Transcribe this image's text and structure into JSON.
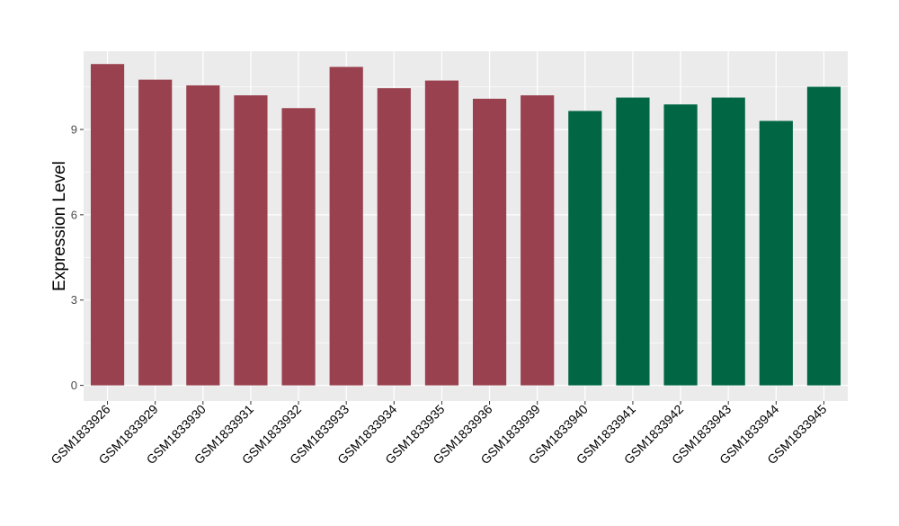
{
  "chart_data": {
    "type": "bar",
    "ylabel": "Expression Level",
    "ylim": [
      -0.55,
      11.75
    ],
    "yticks": [
      0,
      3,
      6,
      9
    ],
    "grid": true,
    "categories": [
      "GSM1833926",
      "GSM1833929",
      "GSM1833930",
      "GSM1833931",
      "GSM1833932",
      "GSM1833933",
      "GSM1833934",
      "GSM1833935",
      "GSM1833936",
      "GSM1833939",
      "GSM1833940",
      "GSM1833941",
      "GSM1833942",
      "GSM1833943",
      "GSM1833944",
      "GSM1833945"
    ],
    "values": [
      11.3,
      10.75,
      10.55,
      10.2,
      9.75,
      11.2,
      10.45,
      10.72,
      10.08,
      10.2,
      9.65,
      10.12,
      9.88,
      10.12,
      9.3,
      10.5
    ],
    "bar_colors": [
      "#99414f",
      "#99414f",
      "#99414f",
      "#99414f",
      "#99414f",
      "#99414f",
      "#99414f",
      "#99414f",
      "#99414f",
      "#99414f",
      "#006644",
      "#006644",
      "#006644",
      "#006644",
      "#006644",
      "#006644"
    ],
    "panel_background": "#ebebeb",
    "grid_color": "#ffffff"
  }
}
